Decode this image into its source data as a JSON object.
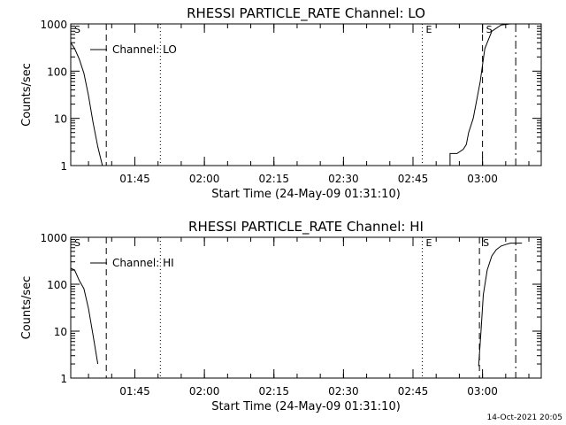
{
  "footer": "14-Oct-2021 20:05",
  "chart_data": [
    {
      "type": "line",
      "title": "RHESSI PARTICLE_RATE Channel: LO",
      "xlabel": "Start Time (24-May-09 01:31:10)",
      "ylabel": "Counts/sec",
      "ylog": true,
      "ylim": [
        1,
        1000
      ],
      "xlim": [
        "01:31:10",
        "03:12:40"
      ],
      "x_ticks": [
        "01:45",
        "02:00",
        "02:15",
        "02:30",
        "02:45",
        "03:00"
      ],
      "y_ticks": [
        "1",
        "10",
        "100",
        "1000"
      ],
      "legend": {
        "position": "top-left",
        "entries": [
          "Channel: LO"
        ]
      },
      "series": [
        {
          "name": "Channel: LO",
          "x": [
            "01:31:10",
            "01:32:00",
            "01:33:00",
            "01:34:00",
            "01:35:00",
            "01:36:00",
            "01:37:00",
            "01:38:00"
          ],
          "y": [
            400,
            300,
            180,
            90,
            30,
            8,
            2.5,
            1
          ]
        },
        {
          "name": "Channel: LO",
          "x": [
            "02:53:00",
            "02:53:00",
            "02:54:30",
            "02:55:50",
            "02:56:30",
            "02:57:00",
            "02:58:00",
            "02:59:30",
            "03:00:30",
            "03:02:00",
            "03:04:00",
            "03:06:00",
            "03:08:00",
            "03:09:30"
          ],
          "y": [
            1,
            1.8,
            1.8,
            2.2,
            2.8,
            5,
            10,
            60,
            300,
            700,
            950,
            1000,
            1000,
            1000
          ]
        }
      ],
      "markers": [
        {
          "label": "S",
          "x": "01:31:10",
          "style": "dash-dot"
        },
        {
          "label": "",
          "x": "01:38:50",
          "style": "dashed"
        },
        {
          "label": "",
          "x": "01:50:30",
          "style": "dotted"
        },
        {
          "label": "E",
          "x": "02:47:00",
          "style": "dotted"
        },
        {
          "label": "S",
          "x": "03:00:00",
          "style": "dashed"
        },
        {
          "label": "",
          "x": "03:07:10",
          "style": "dash-dot"
        }
      ]
    },
    {
      "type": "line",
      "title": "RHESSI PARTICLE_RATE Channel: HI",
      "xlabel": "Start Time (24-May-09 01:31:10)",
      "ylabel": "Counts/sec",
      "ylog": true,
      "ylim": [
        1,
        1000
      ],
      "xlim": [
        "01:31:10",
        "03:12:40"
      ],
      "x_ticks": [
        "01:45",
        "02:00",
        "02:15",
        "02:30",
        "02:45",
        "03:00"
      ],
      "y_ticks": [
        "1",
        "10",
        "100",
        "1000"
      ],
      "legend": {
        "position": "top-left",
        "entries": [
          "Channel: HI"
        ]
      },
      "series": [
        {
          "name": "Channel: HI",
          "x": [
            "01:31:10",
            "01:32:00",
            "01:33:00",
            "01:34:00",
            "01:35:00",
            "01:36:00",
            "01:37:00"
          ],
          "y": [
            220,
            200,
            120,
            80,
            30,
            8,
            2
          ]
        },
        {
          "name": "Channel: HI",
          "x": [
            "02:59:10",
            "02:59:40",
            "03:00:10",
            "03:01:00",
            "03:02:00",
            "03:03:00",
            "03:04:00",
            "03:05:00",
            "03:06:00",
            "03:08:30"
          ],
          "y": [
            1.8,
            10,
            60,
            200,
            400,
            550,
            650,
            700,
            750,
            750
          ]
        }
      ],
      "markers": [
        {
          "label": "S",
          "x": "01:31:10",
          "style": "dash-dot"
        },
        {
          "label": "",
          "x": "01:38:50",
          "style": "dashed"
        },
        {
          "label": "",
          "x": "01:50:30",
          "style": "dotted"
        },
        {
          "label": "E",
          "x": "02:47:00",
          "style": "dotted"
        },
        {
          "label": "S",
          "x": "02:59:20",
          "style": "dashed"
        },
        {
          "label": "",
          "x": "03:07:10",
          "style": "dash-dot"
        }
      ]
    }
  ]
}
